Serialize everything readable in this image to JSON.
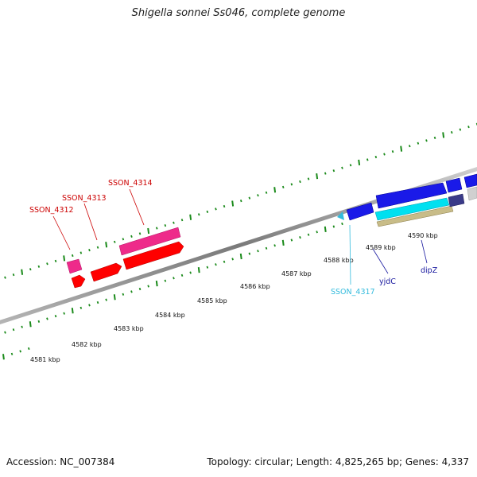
{
  "title": "Shigella sonnei Ss046, complete genome",
  "footer": {
    "accession": "Accession: NC_007384",
    "summary": "Topology: circular; Length: 4,825,265 bp; Genes: 4,337"
  },
  "ruler_labels": [
    "4581 kbp",
    "4582 kbp",
    "4583 kbp",
    "4584 kbp",
    "4585 kbp",
    "4586 kbp",
    "4587 kbp",
    "4588 kbp",
    "4589 kbp",
    "4590 kbp"
  ],
  "genes": [
    {
      "label": "SSON_4312",
      "color": "#cc0000"
    },
    {
      "label": "SSON_4313",
      "color": "#cc0000"
    },
    {
      "label": "SSON_4314",
      "color": "#cc0000"
    },
    {
      "label": "SSON_4317",
      "color": "#33bbdd"
    },
    {
      "label": "yjdC",
      "color": "#1a1aa0"
    },
    {
      "label": "dipZ",
      "color": "#1a1aa0"
    }
  ],
  "colors": {
    "forward_gene": "#ff0000",
    "forward_gene_pink": "#ee2a8a",
    "reverse_gene": "#1010ee",
    "cyan_gene": "#00e0f0",
    "tan_gene": "#c8bc88",
    "tick": "#1a8a1a",
    "backbone": "#888888"
  }
}
